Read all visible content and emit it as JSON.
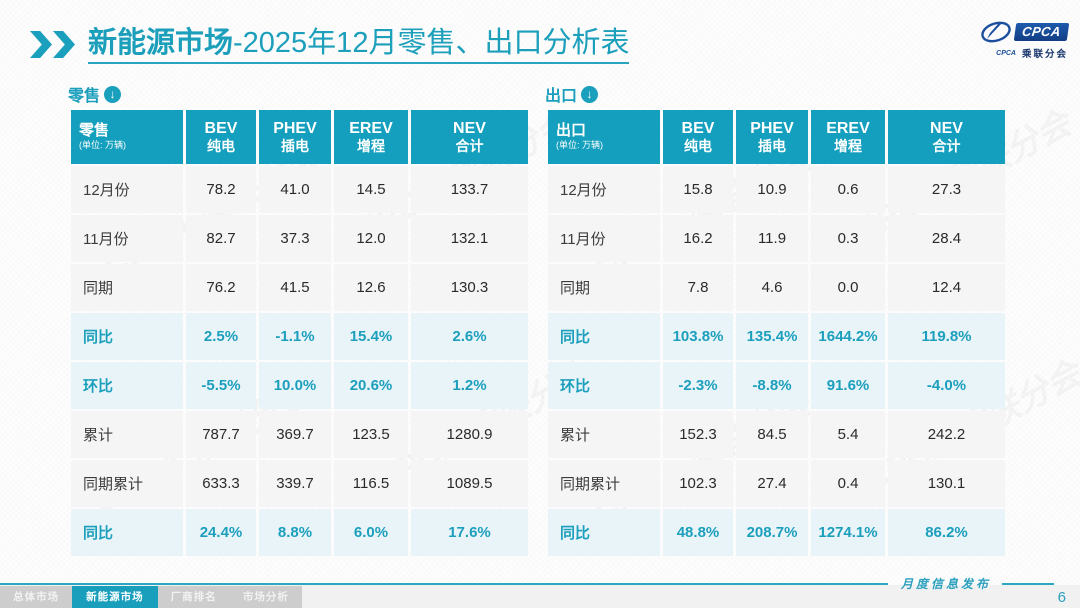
{
  "title": {
    "highlight": "新能源市场",
    "rest": "-2025年12月零售、出口分析表"
  },
  "logo": {
    "main": "CPCA",
    "sub_en": "CPCA",
    "sub_cn": "乘联分会"
  },
  "icons": {
    "section_arrow": "↓"
  },
  "watermark": "CPCA 乘联分会",
  "colors": {
    "accent_teal": "#1A9FBC",
    "table_header_bg": "#139FBD",
    "percent_row_bg": "#E9F4F9",
    "percent_text": "#1C9FBC",
    "logo_blue": "#1B4F9E",
    "tab_inactive_bg": "#CDCDCD"
  },
  "chart_data": [
    {
      "type": "table",
      "title": "零售",
      "unit_note": "(单位: 万辆)",
      "columns": [
        {
          "en": "BEV",
          "cn": "纯电"
        },
        {
          "en": "PHEV",
          "cn": "插电"
        },
        {
          "en": "EREV",
          "cn": "增程"
        },
        {
          "en": "NEV",
          "cn": "合计"
        }
      ],
      "rows": [
        {
          "label": "12月份",
          "style": "normal",
          "values": [
            "78.2",
            "41.0",
            "14.5",
            "133.7"
          ]
        },
        {
          "label": "11月份",
          "style": "normal",
          "values": [
            "82.7",
            "37.3",
            "12.0",
            "132.1"
          ]
        },
        {
          "label": "同期",
          "style": "normal",
          "values": [
            "76.2",
            "41.5",
            "12.6",
            "130.3"
          ]
        },
        {
          "label": "同比",
          "style": "percent",
          "values": [
            "2.5%",
            "-1.1%",
            "15.4%",
            "2.6%"
          ]
        },
        {
          "label": "环比",
          "style": "percent",
          "values": [
            "-5.5%",
            "10.0%",
            "20.6%",
            "1.2%"
          ]
        },
        {
          "label": "累计",
          "style": "normal",
          "values": [
            "787.7",
            "369.7",
            "123.5",
            "1280.9"
          ]
        },
        {
          "label": "同期累计",
          "style": "normal",
          "values": [
            "633.3",
            "339.7",
            "116.5",
            "1089.5"
          ]
        },
        {
          "label": "同比",
          "style": "percent",
          "values": [
            "24.4%",
            "8.8%",
            "6.0%",
            "17.6%"
          ]
        }
      ]
    },
    {
      "type": "table",
      "title": "出口",
      "unit_note": "(单位: 万辆)",
      "columns": [
        {
          "en": "BEV",
          "cn": "纯电"
        },
        {
          "en": "PHEV",
          "cn": "插电"
        },
        {
          "en": "EREV",
          "cn": "增程"
        },
        {
          "en": "NEV",
          "cn": "合计"
        }
      ],
      "rows": [
        {
          "label": "12月份",
          "style": "normal",
          "values": [
            "15.8",
            "10.9",
            "0.6",
            "27.3"
          ]
        },
        {
          "label": "11月份",
          "style": "normal",
          "values": [
            "16.2",
            "11.9",
            "0.3",
            "28.4"
          ]
        },
        {
          "label": "同期",
          "style": "normal",
          "values": [
            "7.8",
            "4.6",
            "0.0",
            "12.4"
          ]
        },
        {
          "label": "同比",
          "style": "percent",
          "values": [
            "103.8%",
            "135.4%",
            "1644.2%",
            "119.8%"
          ]
        },
        {
          "label": "环比",
          "style": "percent",
          "values": [
            "-2.3%",
            "-8.8%",
            "91.6%",
            "-4.0%"
          ]
        },
        {
          "label": "累计",
          "style": "normal",
          "values": [
            "152.3",
            "84.5",
            "5.4",
            "242.2"
          ]
        },
        {
          "label": "同期累计",
          "style": "normal",
          "values": [
            "102.3",
            "27.4",
            "0.4",
            "130.1"
          ]
        },
        {
          "label": "同比",
          "style": "percent",
          "values": [
            "48.8%",
            "208.7%",
            "1274.1%",
            "86.2%"
          ]
        }
      ]
    }
  ],
  "footer": {
    "tabs": [
      {
        "label": "总体市场",
        "active": false
      },
      {
        "label": "新能源市场",
        "active": true
      },
      {
        "label": "厂商排名",
        "active": false
      },
      {
        "label": "市场分析",
        "active": false
      }
    ],
    "note": "月度信息发布",
    "page": "6"
  }
}
